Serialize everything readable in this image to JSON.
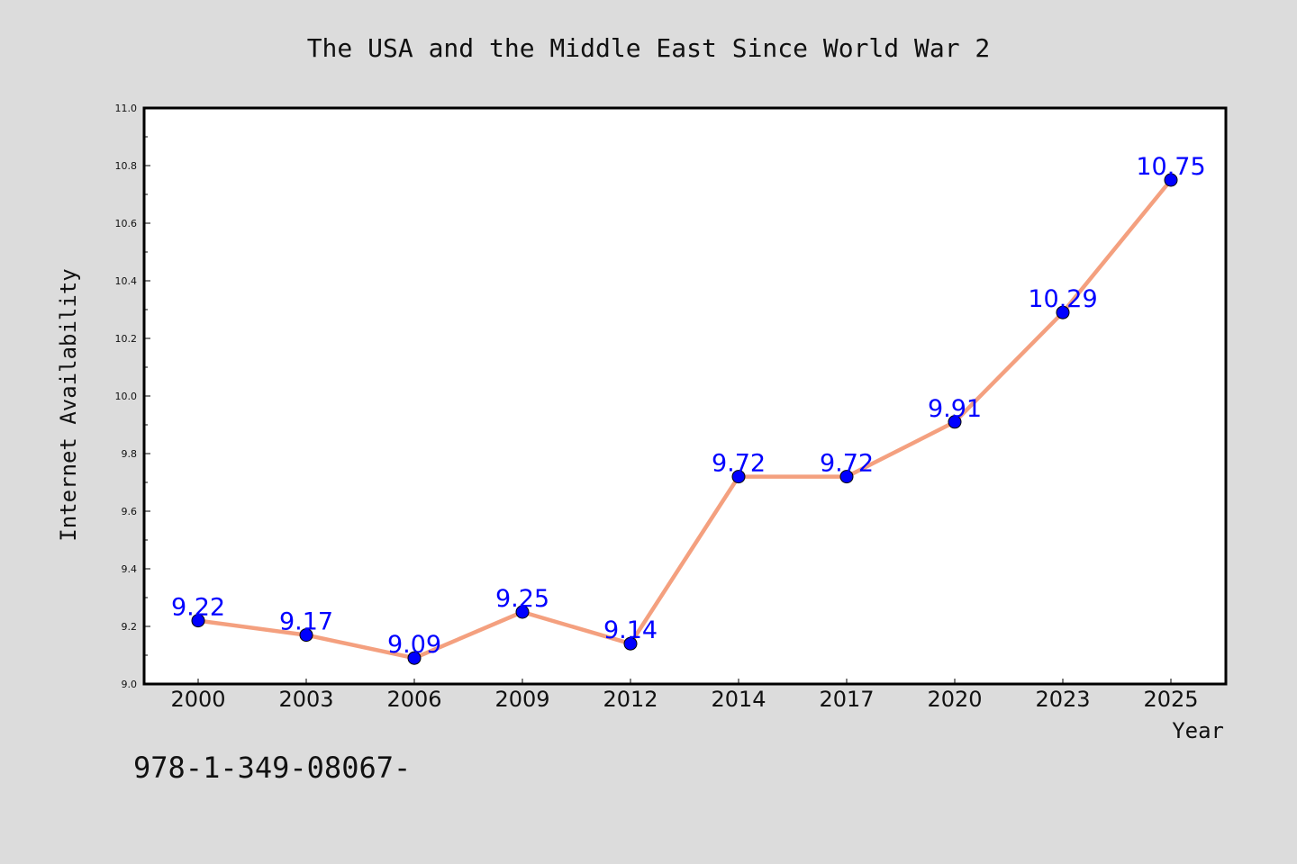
{
  "chart_data": {
    "type": "line",
    "title": "The USA and the Middle East Since World War 2",
    "xlabel": "Year",
    "ylabel": "Internet Availability",
    "categories": [
      "2000",
      "2003",
      "2006",
      "2009",
      "2012",
      "2014",
      "2017",
      "2020",
      "2023",
      "2025"
    ],
    "values": [
      9.22,
      9.17,
      9.09,
      9.25,
      9.14,
      9.72,
      9.72,
      9.91,
      10.29,
      10.75
    ],
    "data_labels": [
      "9.22",
      "9.17",
      "9.09",
      "9.25",
      "9.14",
      "9.72",
      "9.72",
      "9.91",
      "10.29",
      "10.75"
    ],
    "ylim": [
      9.0,
      11.0
    ],
    "yticks": [
      "9.0",
      "9.2",
      "9.4",
      "9.6",
      "9.8",
      "10.0",
      "10.2",
      "10.4",
      "10.6",
      "10.8",
      "11.0"
    ],
    "grid": false,
    "colors": {
      "line": "#f4a07f",
      "marker": "#0000ff",
      "data_label": "#0000ff",
      "background": "#dcdcdc",
      "plot_background": "#ffffff"
    }
  },
  "footer_text": "978-1-349-08067-"
}
